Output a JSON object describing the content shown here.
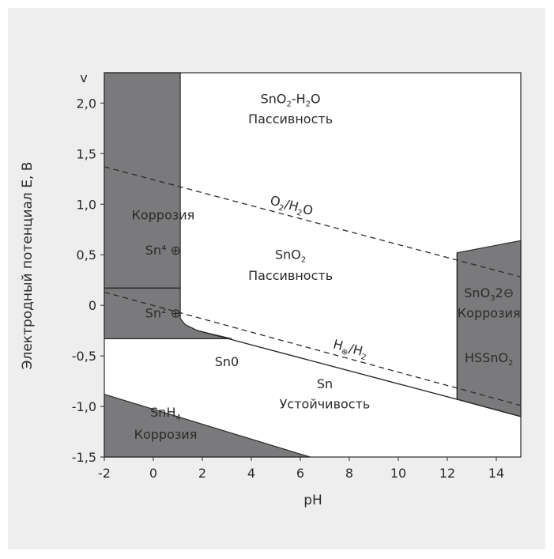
{
  "chart_data": {
    "type": "area",
    "title": "",
    "xlabel": "pH",
    "ylabel": "Электродный потенциал E, В",
    "y_unit_label": "v",
    "xlim": [
      -2,
      15
    ],
    "ylim": [
      -1.5,
      2.3
    ],
    "x_ticks": [
      -2,
      0,
      2,
      4,
      6,
      8,
      10,
      12,
      14
    ],
    "x_tick_labels": [
      "-2",
      "0",
      "2",
      "4",
      "6",
      "8",
      "10",
      "12",
      "14"
    ],
    "y_ticks": [
      2.0,
      1.5,
      1.0,
      0.5,
      0,
      -0.5,
      -1.0,
      -1.5
    ],
    "y_tick_labels": [
      "2,0",
      "1,5",
      "1,0",
      "0,5",
      "0",
      "-0,5",
      "-1,0",
      "-1,5"
    ],
    "grid": false,
    "regions": [
      {
        "name": "corrosion-sn4",
        "fill": "#7a7a7c",
        "points": [
          [
            -2,
            2.3
          ],
          [
            1.1,
            2.3
          ],
          [
            1.1,
            0.17
          ],
          [
            -2,
            0.17
          ]
        ]
      },
      {
        "name": "corrosion-sn2",
        "fill": "#7a7a7c",
        "points": [
          [
            -2,
            0.17
          ],
          [
            1.1,
            0.17
          ],
          [
            1.1,
            -0.13
          ],
          [
            1.3,
            -0.19
          ],
          [
            1.8,
            -0.25
          ],
          [
            3.2,
            -0.33
          ],
          [
            -2,
            -0.33
          ]
        ]
      },
      {
        "name": "corrosion-stannate",
        "fill": "#7a7a7c",
        "points": [
          [
            12.4,
            0.52
          ],
          [
            15,
            0.64
          ],
          [
            15,
            -1.1
          ],
          [
            12.4,
            -0.93
          ]
        ]
      },
      {
        "name": "corrosion-snh4",
        "fill": "#7a7a7c",
        "points": [
          [
            -2,
            -0.88
          ],
          [
            6.4,
            -1.5
          ],
          [
            -2,
            -1.5
          ]
        ]
      }
    ],
    "boundary_lines": [
      {
        "name": "sn4-sn2-line",
        "points": [
          [
            -2,
            0.17
          ],
          [
            1.1,
            0.17
          ]
        ]
      },
      {
        "name": "sn-passivity-line",
        "points": [
          [
            1.8,
            -0.25
          ],
          [
            12.4,
            -0.93
          ],
          [
            15,
            -1.1
          ]
        ]
      },
      {
        "name": "stannate-line",
        "points": [
          [
            12.4,
            -0.93
          ],
          [
            12.4,
            0.52
          ]
        ]
      }
    ],
    "dashed_lines": [
      {
        "name": "o2-h2o-line",
        "label_parts": [
          "O",
          "2",
          "/H",
          "2",
          "O"
        ],
        "points": [
          [
            -2,
            1.37
          ],
          [
            15,
            0.28
          ]
        ]
      },
      {
        "name": "h-h2-line",
        "label_parts": [
          "H",
          "⊕",
          "/H",
          "2"
        ],
        "points": [
          [
            -2,
            0.13
          ],
          [
            15,
            -0.99
          ]
        ]
      }
    ],
    "annotations": [
      {
        "name": "sno2-h2o-label",
        "parts": [
          "SnO",
          "2",
          "-H",
          "2",
          "O"
        ],
        "x": 5.6,
        "y": 2.0
      },
      {
        "name": "passivity-top-label",
        "text": "Пассивность",
        "x": 5.6,
        "y": 1.8
      },
      {
        "name": "sno2-label",
        "parts": [
          "SnO",
          "2"
        ],
        "x": 5.6,
        "y": 0.46
      },
      {
        "name": "passivity-mid-label",
        "text": "Пассивность",
        "x": 5.6,
        "y": 0.25
      },
      {
        "name": "corrosion-left-label",
        "text": "Коррозия",
        "x": 0.4,
        "y": 0.85
      },
      {
        "name": "sn4-label",
        "text": "Sn⁴ ⊕",
        "x": 0.4,
        "y": 0.5
      },
      {
        "name": "sn2-label",
        "text": "Sn² ⊕",
        "x": 0.4,
        "y": -0.12
      },
      {
        "name": "sn0-label",
        "text": "Sn0",
        "x": 3.0,
        "y": -0.6
      },
      {
        "name": "sn-label",
        "text": "Sn",
        "x": 7.0,
        "y": -0.82
      },
      {
        "name": "stability-label",
        "text": "Устойчивость",
        "x": 7.0,
        "y": -1.02
      },
      {
        "name": "sno3-label",
        "parts": [
          "SnO",
          "3",
          "2⊖"
        ],
        "x": 13.7,
        "y": 0.08
      },
      {
        "name": "corrosion-right-label",
        "text": "Коррозия",
        "x": 13.7,
        "y": -0.12
      },
      {
        "name": "hssno2-label",
        "parts": [
          "HSSnO",
          "2"
        ],
        "x": 13.7,
        "y": -0.56
      },
      {
        "name": "snh4-label",
        "parts": [
          "SnH",
          "4"
        ],
        "x": 0.5,
        "y": -1.1
      },
      {
        "name": "corrosion-bottom-label",
        "text": "Коррозия",
        "x": 0.5,
        "y": -1.32
      }
    ]
  }
}
